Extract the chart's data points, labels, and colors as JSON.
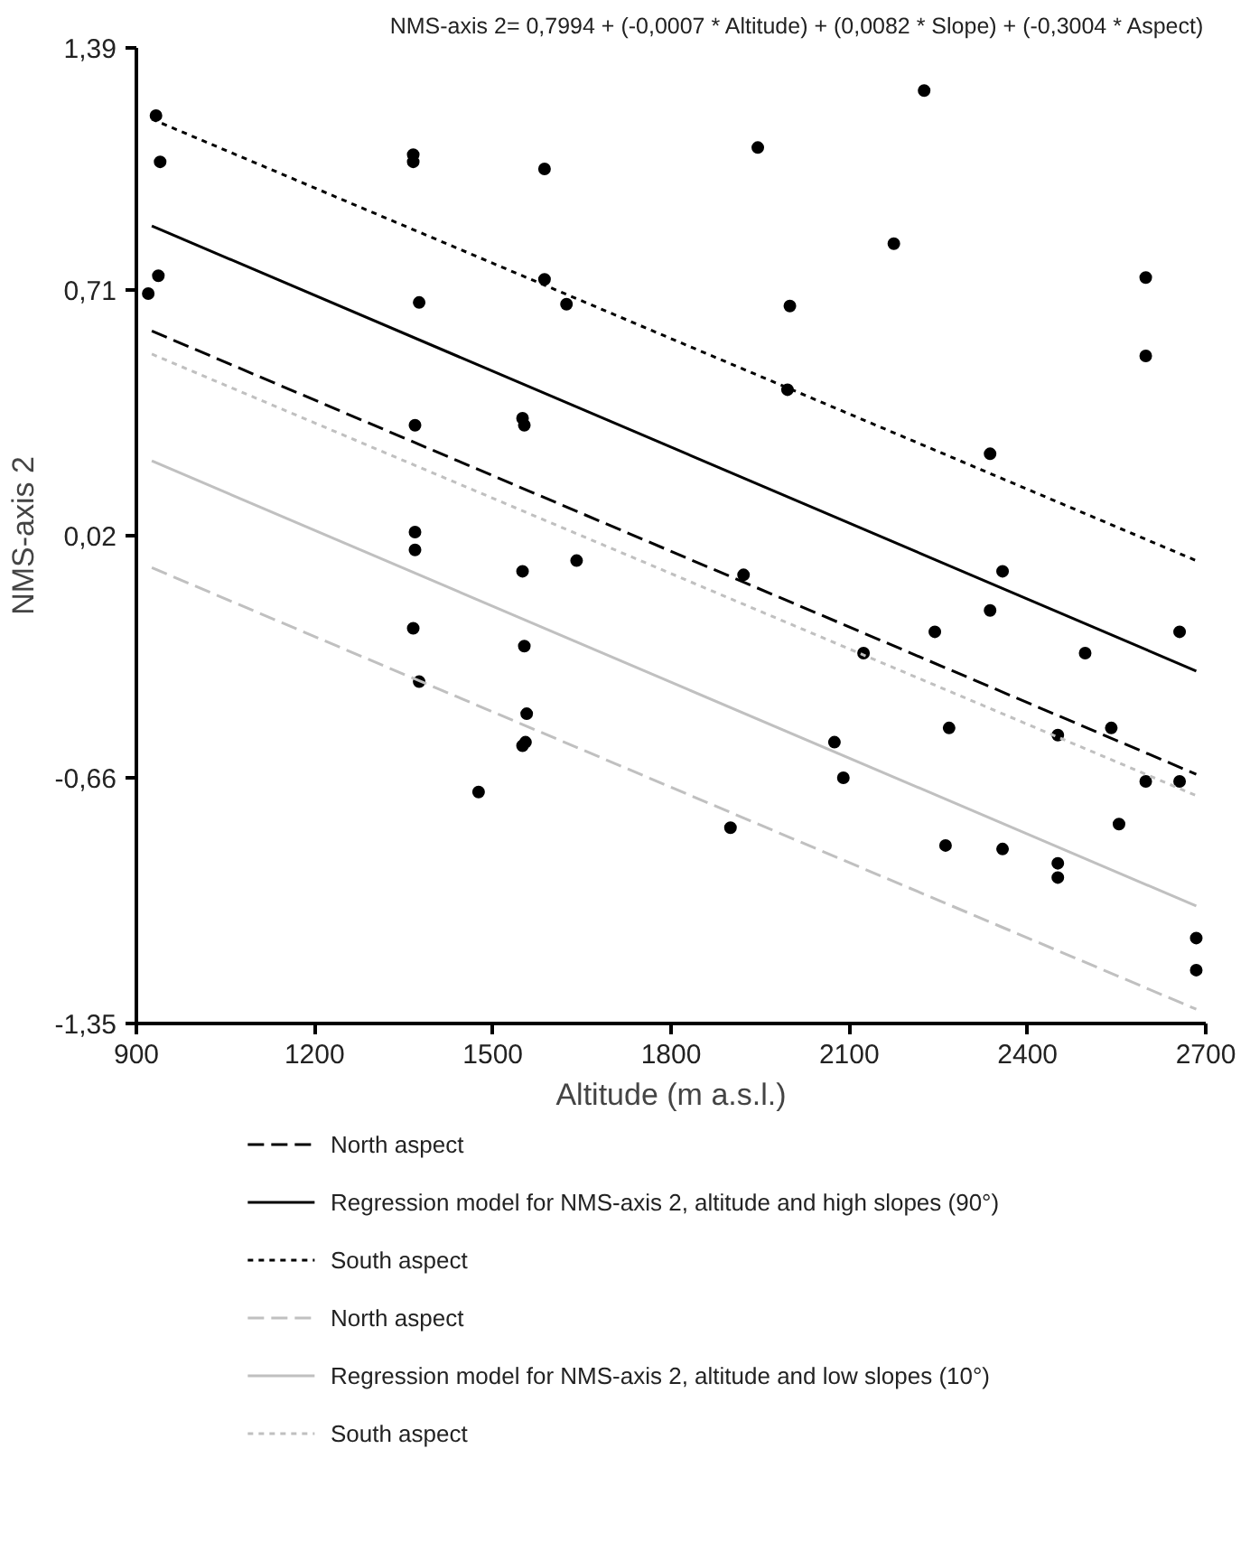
{
  "chart_data": {
    "type": "scatter",
    "xlabel": "Altitude (m a.s.l.)",
    "ylabel": "NMS-axis 2",
    "annotations": [
      "NMS-axis 2= 0,7994 + (-0,0007 * Altitude) + (0,0082 * Slope) + (-0,3004 * Aspect)"
    ],
    "xlim": [
      900,
      2700
    ],
    "xticks": [
      900,
      1200,
      1500,
      1800,
      2100,
      2400,
      2700
    ],
    "ylim": [
      -1.35,
      1.39
    ],
    "yticks": [
      {
        "value": -1.35,
        "label": "-1,35"
      },
      {
        "value": -0.66,
        "label": "-0,66"
      },
      {
        "value": 0.02,
        "label": "0,02"
      },
      {
        "value": 0.71,
        "label": "0,71"
      },
      {
        "value": 1.39,
        "label": "1,39"
      }
    ],
    "grid": false,
    "legend": "bottom",
    "series": [
      {
        "marker": "circle",
        "color": "#000000",
        "x": [
          920,
          933,
          940,
          937,
          1366,
          1366,
          1376,
          1587,
          1587,
          1624,
          1369,
          1550,
          1553,
          1369,
          1369,
          1641,
          1550,
          1366,
          1553,
          1376,
          1557,
          1555,
          1550,
          1476,
          1946,
          2226,
          2175,
          2000,
          1996,
          2599,
          2599,
          2337,
          1922,
          2358,
          2337,
          2244,
          2656,
          2497,
          2124,
          2268,
          2451,
          2541,
          2599,
          2656,
          2075,
          2090,
          1900,
          2262,
          2358,
          2451,
          2451,
          2554,
          2684,
          2684
        ],
        "values": [
          0.7,
          1.2,
          1.07,
          0.75,
          1.09,
          1.07,
          0.675,
          1.05,
          0.74,
          0.67,
          0.33,
          0.35,
          0.33,
          0.03,
          -0.02,
          -0.05,
          -0.08,
          -0.24,
          -0.29,
          -0.39,
          -0.48,
          -0.56,
          -0.57,
          -0.7,
          1.11,
          1.27,
          0.84,
          0.665,
          0.43,
          0.745,
          0.525,
          0.25,
          -0.09,
          -0.08,
          -0.19,
          -0.25,
          -0.25,
          -0.31,
          -0.31,
          -0.52,
          -0.54,
          -0.52,
          -0.67,
          -0.67,
          -0.56,
          -0.66,
          -0.8,
          -0.85,
          -0.86,
          -0.9,
          -0.94,
          -0.79,
          -1.11,
          -1.2
        ]
      },
      {
        "type": "line",
        "name": "North aspect",
        "color": "#000000",
        "line_style": "dashed",
        "x": [
          926,
          2684
        ],
        "values": [
          0.595,
          -0.65
        ]
      },
      {
        "type": "line",
        "name": "Regression model for NMS-axis 2, altitude and high slopes (90°)",
        "color": "#000000",
        "line_style": "solid",
        "x": [
          926,
          2684
        ],
        "values": [
          0.89,
          -0.36
        ]
      },
      {
        "type": "line",
        "name": "South aspect",
        "color": "#000000",
        "line_style": "dotted",
        "x": [
          926,
          2684
        ],
        "values": [
          1.19,
          -0.05
        ]
      },
      {
        "type": "line",
        "name": "North aspect",
        "color": "#c0c0c0",
        "line_style": "dashed",
        "x": [
          926,
          2684
        ],
        "values": [
          -0.07,
          -1.31
        ]
      },
      {
        "type": "line",
        "name": "Regression model for NMS-axis 2, altitude and low slopes (10°)",
        "color": "#c0c0c0",
        "line_style": "solid",
        "x": [
          926,
          2684
        ],
        "values": [
          0.23,
          -1.02
        ]
      },
      {
        "type": "line",
        "name": "South aspect",
        "color": "#c0c0c0",
        "line_style": "dotted",
        "x": [
          926,
          2684
        ],
        "values": [
          0.53,
          -0.71
        ]
      }
    ]
  }
}
